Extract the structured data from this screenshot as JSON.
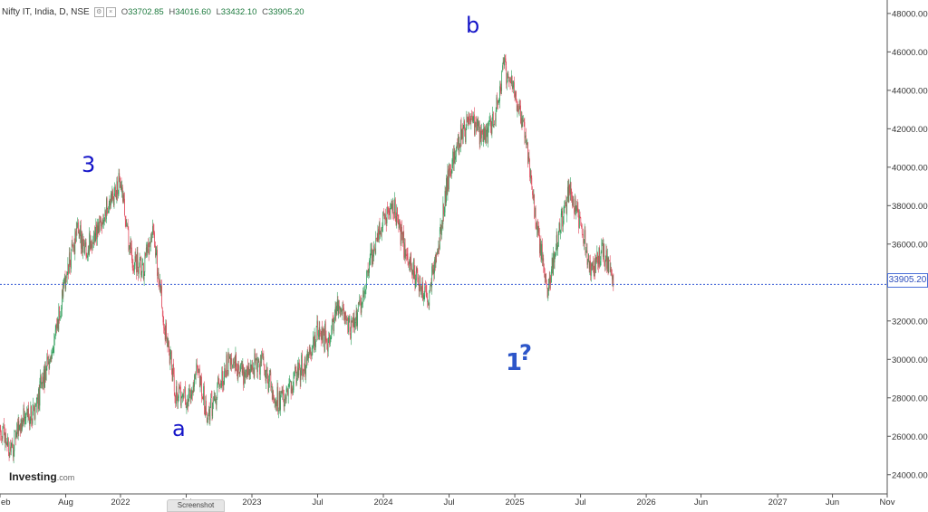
{
  "header": {
    "symbol": "Nifty IT, India, D, NSE",
    "open_label": "O",
    "open": "33702.85",
    "high_label": "H",
    "high": "34016.60",
    "low_label": "L",
    "low": "33432.10",
    "close_label": "C",
    "close": "33905.20",
    "icons": [
      "settings-icon",
      "close-icon"
    ]
  },
  "current_price": "33905.20",
  "brand": {
    "name": "Investing",
    "suffix": ".com"
  },
  "screenshot_tab": "Screenshot",
  "wave_labels": [
    {
      "text": "3",
      "style": "wave-3"
    },
    {
      "text": "a",
      "style": "wave-a"
    },
    {
      "text": "b",
      "style": "wave-b"
    },
    {
      "text": "1",
      "style": "wave-1"
    },
    {
      "text": "?",
      "style": "wave-q"
    }
  ],
  "chart_data": {
    "type": "candlestick",
    "title": "Nifty IT, India, D, NSE",
    "y_ticks": [
      "24000.00",
      "26000.00",
      "28000.00",
      "30000.00",
      "32000.00",
      "34000.00",
      "36000.00",
      "38000.00",
      "40000.00",
      "42000.00",
      "44000.00",
      "46000.00",
      "48000.00"
    ],
    "ylim": [
      23000,
      48700
    ],
    "x_ticks": [
      "eb",
      "Aug",
      "2022",
      "Jul",
      "2023",
      "Jul",
      "2024",
      "Jul",
      "2025",
      "Jul",
      "2026",
      "Jun",
      "2027",
      "Jun",
      "Nov"
    ],
    "x_tick_dates": [
      "2021-02",
      "2021-08",
      "2022-01",
      "2022-07",
      "2023-01",
      "2023-07",
      "2024-01",
      "2024-07",
      "2025-01",
      "2025-07",
      "2026-01",
      "2026-06",
      "2027-01",
      "2027-06",
      "2027-11"
    ],
    "xlim": [
      "2021-02",
      "2027-11"
    ],
    "path_points": [
      [
        "2021-02",
        26500
      ],
      [
        "2021-03",
        25200
      ],
      [
        "2021-04",
        26900
      ],
      [
        "2021-05",
        27300
      ],
      [
        "2021-06",
        29000
      ],
      [
        "2021-07",
        31000
      ],
      [
        "2021-08",
        34200
      ],
      [
        "2021-09",
        36500
      ],
      [
        "2021-10",
        35800
      ],
      [
        "2021-11",
        36800
      ],
      [
        "2021-12",
        38000
      ],
      [
        "2022-01",
        39300
      ],
      [
        "2022-02",
        35200
      ],
      [
        "2022-03",
        34500
      ],
      [
        "2022-04",
        36500
      ],
      [
        "2022-05",
        31800
      ],
      [
        "2022-06",
        28500
      ],
      [
        "2022-07",
        27700
      ],
      [
        "2022-08",
        29200
      ],
      [
        "2022-09",
        27000
      ],
      [
        "2022-10",
        28800
      ],
      [
        "2022-11",
        29800
      ],
      [
        "2022-12",
        29400
      ],
      [
        "2023-01",
        29500
      ],
      [
        "2023-02",
        30000
      ],
      [
        "2023-03",
        28100
      ],
      [
        "2023-04",
        27800
      ],
      [
        "2023-05",
        29200
      ],
      [
        "2023-06",
        29900
      ],
      [
        "2023-07",
        31500
      ],
      [
        "2023-08",
        31000
      ],
      [
        "2023-09",
        33000
      ],
      [
        "2023-10",
        31500
      ],
      [
        "2023-11",
        33000
      ],
      [
        "2023-12",
        35500
      ],
      [
        "2024-01",
        37500
      ],
      [
        "2024-02",
        37800
      ],
      [
        "2024-03",
        35500
      ],
      [
        "2024-04",
        34300
      ],
      [
        "2024-05",
        33000
      ],
      [
        "2024-06",
        35800
      ],
      [
        "2024-07",
        39900
      ],
      [
        "2024-08",
        41500
      ],
      [
        "2024-09",
        42600
      ],
      [
        "2024-10",
        41500
      ],
      [
        "2024-11",
        42300
      ],
      [
        "2024-12",
        45000
      ],
      [
        "2025-01",
        44000
      ],
      [
        "2025-02",
        41500
      ],
      [
        "2025-03",
        37000
      ],
      [
        "2025-04",
        33500
      ],
      [
        "2025-05",
        36500
      ],
      [
        "2025-06",
        38800
      ],
      [
        "2025-07",
        37000
      ],
      [
        "2025-08",
        34600
      ],
      [
        "2025-09",
        35800
      ],
      [
        "2025-10",
        33905
      ]
    ],
    "peak_high": 46100,
    "last_close": 33905.2,
    "grid": false,
    "colors": {
      "up": "#2f9e5a",
      "down": "#e0485a",
      "price_line": "#3b5fd6",
      "axis_text": "#333333",
      "wave_label": "#1414c8"
    }
  }
}
